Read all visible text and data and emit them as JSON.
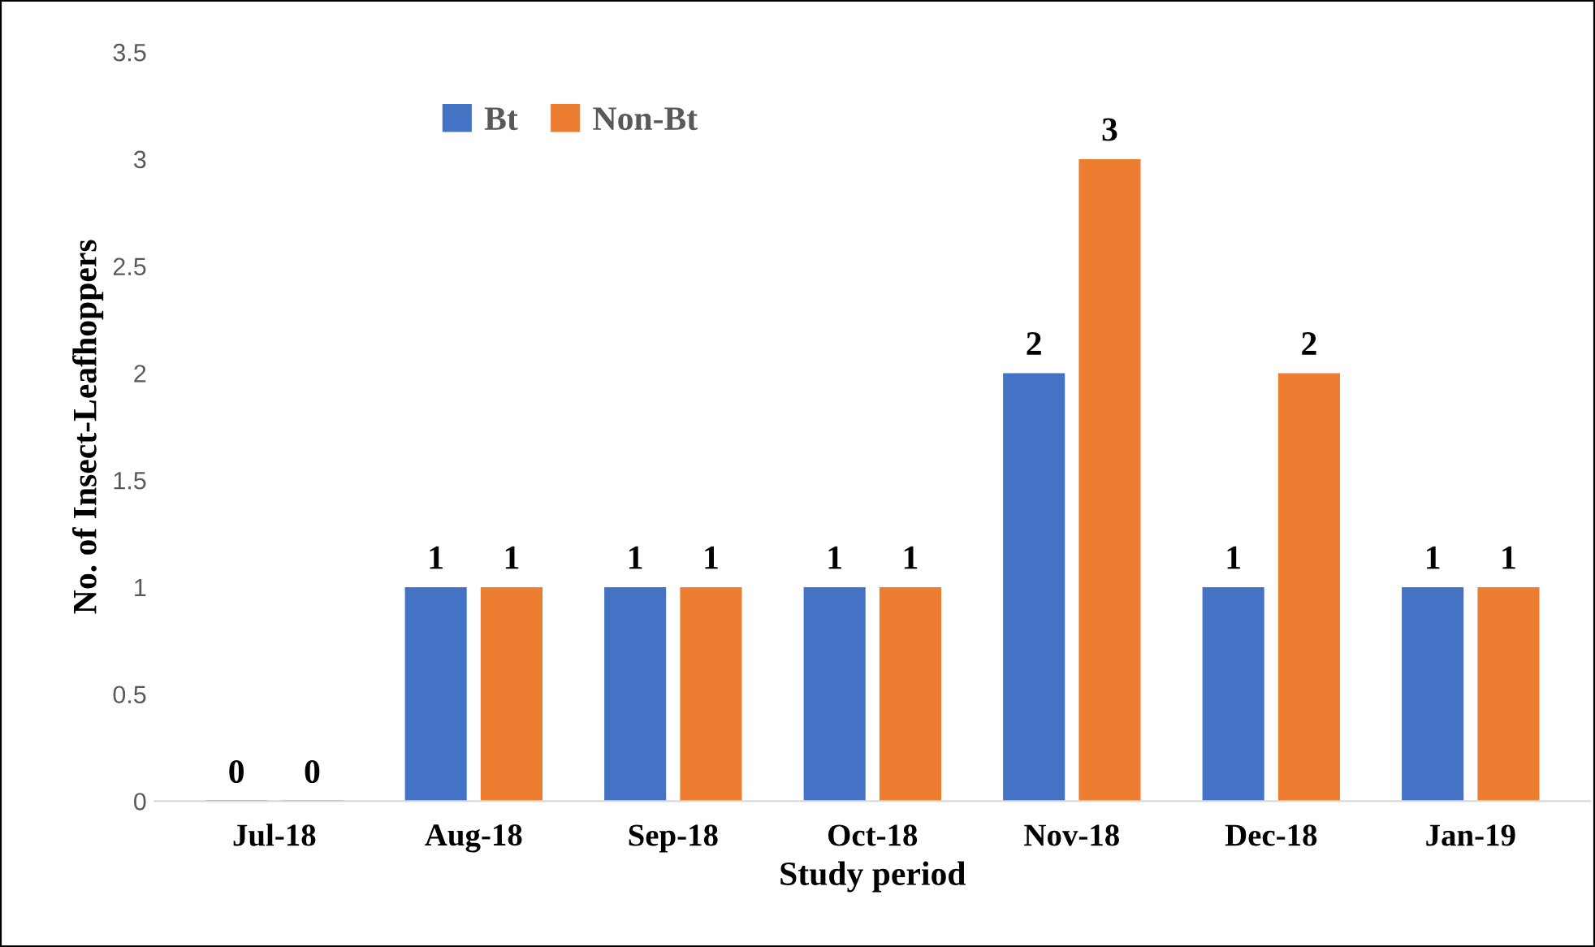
{
  "chart_data": {
    "type": "bar",
    "xlabel": "Study period",
    "ylabel": "No. of Insect-Leafhoppers",
    "categories": [
      "Jul-18",
      "Aug-18",
      "Sep-18",
      "Oct-18",
      "Nov-18",
      "Dec-18",
      "Jan-19"
    ],
    "series": [
      {
        "name": "Bt",
        "color": "#4472c4",
        "values": [
          0,
          1,
          1,
          1,
          2,
          1,
          1
        ]
      },
      {
        "name": "Non-Bt",
        "color": "#ed7d31",
        "values": [
          0,
          1,
          1,
          1,
          3,
          2,
          1
        ]
      }
    ],
    "ylim": [
      0,
      3.5
    ],
    "yticks": [
      0,
      0.5,
      1,
      1.5,
      2,
      2.5,
      3,
      3.5
    ],
    "data_labels": true,
    "grid": false,
    "legend": "top left"
  }
}
